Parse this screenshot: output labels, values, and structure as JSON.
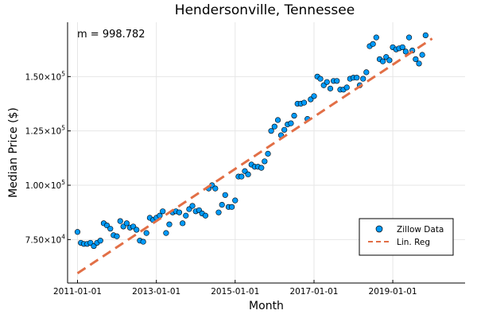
{
  "chart_data": {
    "type": "scatter",
    "title": "Hendersonville, Tennessee",
    "xlabel": "Month",
    "ylabel": "Median Price ($)",
    "annotation": "m = 998.782",
    "grid": true,
    "legend_position": "bottom-right",
    "x_range": [
      "2010-10-01",
      "2020-11-01"
    ],
    "ylim": [
      55000,
      175000
    ],
    "x_ticks": [
      "2011-01-01",
      "2013-01-01",
      "2015-01-01",
      "2017-01-01",
      "2019-01-01"
    ],
    "y_ticks": [
      {
        "value": 75000,
        "mantissa": "7.50",
        "base": "×10",
        "exp": "4"
      },
      {
        "value": 100000,
        "mantissa": "1.00",
        "base": "×10",
        "exp": "5"
      },
      {
        "value": 125000,
        "mantissa": "1.25",
        "base": "×10",
        "exp": "5"
      },
      {
        "value": 150000,
        "mantissa": "1.50",
        "base": "×10",
        "exp": "5"
      }
    ],
    "series": [
      {
        "name": "Zillow Data",
        "kind": "scatter",
        "color": "#009AFA",
        "x": [
          "2011-01-01",
          "2011-02-01",
          "2011-03-01",
          "2011-04-01",
          "2011-05-01",
          "2011-06-01",
          "2011-07-01",
          "2011-08-01",
          "2011-09-01",
          "2011-10-01",
          "2011-11-01",
          "2011-12-01",
          "2012-01-01",
          "2012-02-01",
          "2012-03-01",
          "2012-04-01",
          "2012-05-01",
          "2012-06-01",
          "2012-07-01",
          "2012-08-01",
          "2012-09-01",
          "2012-10-01",
          "2012-11-01",
          "2012-12-01",
          "2013-01-01",
          "2013-02-01",
          "2013-03-01",
          "2013-04-01",
          "2013-05-01",
          "2013-06-01",
          "2013-07-01",
          "2013-08-01",
          "2013-09-01",
          "2013-10-01",
          "2013-11-01",
          "2013-12-01",
          "2014-01-01",
          "2014-02-01",
          "2014-03-01",
          "2014-04-01",
          "2014-05-01",
          "2014-06-01",
          "2014-07-01",
          "2014-08-01",
          "2014-09-01",
          "2014-10-01",
          "2014-11-01",
          "2014-12-01",
          "2015-01-01",
          "2015-02-01",
          "2015-03-01",
          "2015-04-01",
          "2015-05-01",
          "2015-06-01",
          "2015-07-01",
          "2015-08-01",
          "2015-09-01",
          "2015-10-01",
          "2015-11-01",
          "2015-12-01",
          "2016-01-01",
          "2016-02-01",
          "2016-03-01",
          "2016-04-01",
          "2016-05-01",
          "2016-06-01",
          "2016-07-01",
          "2016-08-01",
          "2016-09-01",
          "2016-10-01",
          "2016-11-01",
          "2016-12-01",
          "2017-01-01",
          "2017-02-01",
          "2017-03-01",
          "2017-04-01",
          "2017-05-01",
          "2017-06-01",
          "2017-07-01",
          "2017-08-01",
          "2017-09-01",
          "2017-10-01",
          "2017-11-01",
          "2017-12-01",
          "2018-01-01",
          "2018-02-01",
          "2018-03-01",
          "2018-04-01",
          "2018-05-01",
          "2018-06-01",
          "2018-07-01",
          "2018-08-01",
          "2018-09-01",
          "2018-10-01",
          "2018-11-01",
          "2018-12-01",
          "2019-01-01",
          "2019-02-01",
          "2019-03-01",
          "2019-04-01",
          "2019-05-01",
          "2019-06-01",
          "2019-07-01",
          "2019-08-01",
          "2019-09-01",
          "2019-10-01",
          "2019-11-01"
        ],
        "y": [
          78500,
          73500,
          73000,
          73000,
          73500,
          72000,
          73500,
          74500,
          82500,
          81500,
          80000,
          77000,
          76500,
          83500,
          81000,
          82500,
          80500,
          81000,
          79500,
          74500,
          74000,
          78000,
          85000,
          84000,
          85000,
          86000,
          88000,
          78000,
          82000,
          87500,
          88000,
          87500,
          82500,
          86000,
          89000,
          90500,
          88000,
          88500,
          87000,
          86000,
          98500,
          100000,
          98500,
          87500,
          91000,
          95500,
          90000,
          90000,
          93000,
          104000,
          104000,
          106500,
          105000,
          109500,
          108500,
          108500,
          108000,
          111000,
          114500,
          125000,
          127000,
          130000,
          123000,
          125500,
          128000,
          128500,
          132000,
          137500,
          137500,
          138000,
          130500,
          139500,
          141000,
          150000,
          149000,
          146000,
          147500,
          144500,
          148000,
          148000,
          144000,
          144000,
          145000,
          149000,
          149500,
          149500,
          146000,
          149000,
          152000,
          164000,
          165000,
          168000,
          158000,
          157000,
          159000,
          157500,
          163500,
          162500,
          163000,
          163500,
          161500,
          168000,
          162000,
          158000,
          156000,
          160000,
          169000
        ]
      },
      {
        "name": "Lin. Reg",
        "kind": "line",
        "style": "dashed",
        "color": "#E26F46",
        "x": [
          "2011-01-01",
          "2020-01-01"
        ],
        "y": [
          59500,
          167500
        ]
      }
    ]
  }
}
